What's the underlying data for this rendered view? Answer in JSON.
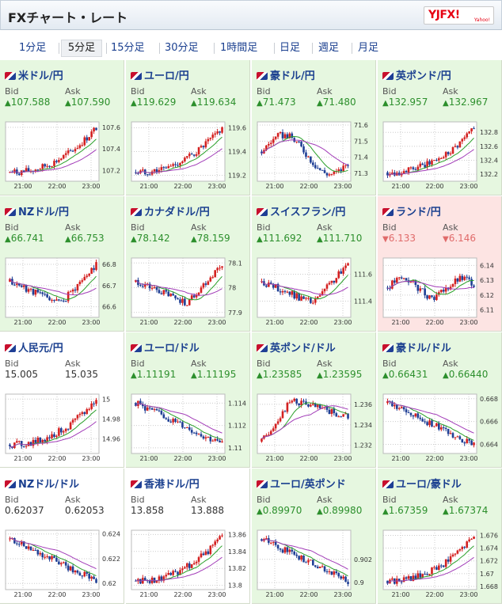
{
  "header": {
    "title": "FXチャート・レート",
    "logo": "YJFX!",
    "logo_sub": "Yahoo!"
  },
  "tabs": [
    {
      "label": "1分足"
    },
    {
      "label": "5分足",
      "active": true
    },
    {
      "label": "15分足"
    },
    {
      "label": "30分足"
    },
    {
      "label": "1時間足"
    },
    {
      "label": "日足"
    },
    {
      "label": "週足"
    },
    {
      "label": "月足"
    }
  ],
  "labels": {
    "bid": "Bid",
    "ask": "Ask"
  },
  "colors": {
    "up_bg": "#e6f7e0",
    "down_bg": "#fde4e3",
    "up_text": "#2c8f2c",
    "down_text": "#e06a6a",
    "link": "#1a3f8f"
  },
  "pairs": [
    {
      "name": "米ドル/円",
      "bid": "107.588",
      "ask": "107.590",
      "dir": "up",
      "chart": {
        "ylabels": [
          "107.6",
          "107.4",
          "107.2"
        ],
        "yticks": [
          107.6,
          107.4,
          107.2
        ],
        "ylim": [
          107.1,
          107.65
        ],
        "trend": "up",
        "xlabels": [
          "21:00",
          "22:00",
          "23:00"
        ]
      }
    },
    {
      "name": "ユーロ/円",
      "bid": "119.629",
      "ask": "119.634",
      "dir": "up",
      "chart": {
        "ylabels": [
          "119.6",
          "119.4",
          "119.2"
        ],
        "yticks": [
          119.6,
          119.4,
          119.2
        ],
        "ylim": [
          119.15,
          119.65
        ],
        "trend": "up",
        "xlabels": [
          "21:00",
          "22:00",
          "23:00"
        ]
      }
    },
    {
      "name": "豪ドル/円",
      "bid": "71.473",
      "ask": "71.480",
      "dir": "up",
      "chart": {
        "ylabels": [
          "71.6",
          "71.5",
          "71.4",
          "71.3"
        ],
        "yticks": [
          71.6,
          71.5,
          71.4,
          71.3
        ],
        "ylim": [
          71.25,
          71.62
        ],
        "trend": "wave",
        "xlabels": [
          "21:00",
          "22:00",
          "23:00"
        ]
      }
    },
    {
      "name": "英ポンド/円",
      "bid": "132.957",
      "ask": "132.967",
      "dir": "up",
      "chart": {
        "ylabels": [
          "132.8",
          "132.6",
          "132.4",
          "132.2"
        ],
        "yticks": [
          132.8,
          132.6,
          132.4,
          132.2
        ],
        "ylim": [
          132.1,
          132.95
        ],
        "trend": "up",
        "xlabels": [
          "21:00",
          "22:00",
          "23:00"
        ]
      }
    },
    {
      "name": "NZドル/円",
      "bid": "66.741",
      "ask": "66.753",
      "dir": "up",
      "chart": {
        "ylabels": [
          "66.8",
          "66.7",
          "66.6"
        ],
        "yticks": [
          66.8,
          66.7,
          66.6
        ],
        "ylim": [
          66.55,
          66.83
        ],
        "trend": "dip",
        "xlabels": [
          "21:00",
          "22:00",
          "23:00"
        ]
      }
    },
    {
      "name": "カナダドル/円",
      "bid": "78.142",
      "ask": "78.159",
      "dir": "up",
      "chart": {
        "ylabels": [
          "78.1",
          "78",
          "77.9"
        ],
        "yticks": [
          78.1,
          78.0,
          77.9
        ],
        "ylim": [
          77.88,
          78.12
        ],
        "trend": "dip",
        "xlabels": [
          "21:00",
          "22:00",
          "23:00"
        ]
      }
    },
    {
      "name": "スイスフラン/円",
      "bid": "111.692",
      "ask": "111.710",
      "dir": "up",
      "chart": {
        "ylabels": [
          "111.6",
          "111.4"
        ],
        "yticks": [
          111.6,
          111.4
        ],
        "ylim": [
          111.28,
          111.72
        ],
        "trend": "dip",
        "xlabels": [
          "21:00",
          "22:00",
          "23:00"
        ]
      }
    },
    {
      "name": "ランド/円",
      "bid": "6.133",
      "ask": "6.146",
      "dir": "down",
      "chart": {
        "ylabels": [
          "6.14",
          "6.13",
          "6.12",
          "6.11"
        ],
        "yticks": [
          6.14,
          6.13,
          6.12,
          6.11
        ],
        "ylim": [
          6.105,
          6.145
        ],
        "trend": "flat",
        "xlabels": [
          "21:00",
          "22:00",
          "23:00"
        ]
      }
    },
    {
      "name": "人民元/円",
      "bid": "15.005",
      "ask": "15.035",
      "dir": "none",
      "chart": {
        "ylabels": [
          "15",
          "14.98",
          "14.96"
        ],
        "yticks": [
          15.0,
          14.98,
          14.96
        ],
        "ylim": [
          14.945,
          15.005
        ],
        "trend": "up",
        "xlabels": [
          "21:00",
          "22:00",
          "23:00"
        ]
      }
    },
    {
      "name": "ユーロ/ドル",
      "bid": "1.11191",
      "ask": "1.11195",
      "dir": "up",
      "chart": {
        "ylabels": [
          "1.114",
          "1.112",
          "1.11"
        ],
        "yticks": [
          1.114,
          1.112,
          1.11
        ],
        "ylim": [
          1.1095,
          1.1148
        ],
        "trend": "down",
        "xlabels": [
          "21:00",
          "22:00",
          "23:00"
        ]
      }
    },
    {
      "name": "英ポンド/ドル",
      "bid": "1.23585",
      "ask": "1.23595",
      "dir": "up",
      "chart": {
        "ylabels": [
          "1.236",
          "1.234",
          "1.232"
        ],
        "yticks": [
          1.236,
          1.234,
          1.232
        ],
        "ylim": [
          1.2312,
          1.237
        ],
        "trend": "hump",
        "xlabels": [
          "21:00",
          "22:00",
          "23:00"
        ]
      }
    },
    {
      "name": "豪ドル/ドル",
      "bid": "0.66431",
      "ask": "0.66440",
      "dir": "up",
      "chart": {
        "ylabels": [
          "0.668",
          "0.666",
          "0.664"
        ],
        "yticks": [
          0.668,
          0.666,
          0.664
        ],
        "ylim": [
          0.6632,
          0.6684
        ],
        "trend": "down",
        "xlabels": [
          "21:00",
          "22:00",
          "23:00"
        ]
      }
    },
    {
      "name": "NZドル/ドル",
      "bid": "0.62037",
      "ask": "0.62053",
      "dir": "none",
      "chart": {
        "ylabels": [
          "0.624",
          "0.622",
          "0.62"
        ],
        "yticks": [
          0.624,
          0.622,
          0.62
        ],
        "ylim": [
          0.6195,
          0.6243
        ],
        "trend": "down",
        "xlabels": [
          "21:00",
          "22:00",
          "23:00"
        ]
      }
    },
    {
      "name": "香港ドル/円",
      "bid": "13.858",
      "ask": "13.888",
      "dir": "none",
      "chart": {
        "ylabels": [
          "13.86",
          "13.84",
          "13.82",
          "13.8"
        ],
        "yticks": [
          13.86,
          13.84,
          13.82,
          13.8
        ],
        "ylim": [
          13.795,
          13.865
        ],
        "trend": "up",
        "xlabels": [
          "21:00",
          "22:00",
          "23:00"
        ]
      }
    },
    {
      "name": "ユーロ/英ポンド",
      "bid": "0.89970",
      "ask": "0.89980",
      "dir": "up",
      "chart": {
        "ylabels": [
          "0.902",
          "0.9"
        ],
        "yticks": [
          0.902,
          0.9
        ],
        "ylim": [
          0.8994,
          0.9045
        ],
        "trend": "down",
        "xlabels": [
          "21:00",
          "22:00",
          "23:00"
        ]
      }
    },
    {
      "name": "ユーロ/豪ドル",
      "bid": "1.67359",
      "ask": "1.67374",
      "dir": "up",
      "chart": {
        "ylabels": [
          "1.676",
          "1.674",
          "1.672",
          "1.67",
          "1.668"
        ],
        "yticks": [
          1.676,
          1.674,
          1.672,
          1.67,
          1.668
        ],
        "ylim": [
          1.6675,
          1.6768
        ],
        "trend": "up",
        "xlabels": [
          "21:00",
          "22:00",
          "23:00"
        ]
      }
    }
  ]
}
